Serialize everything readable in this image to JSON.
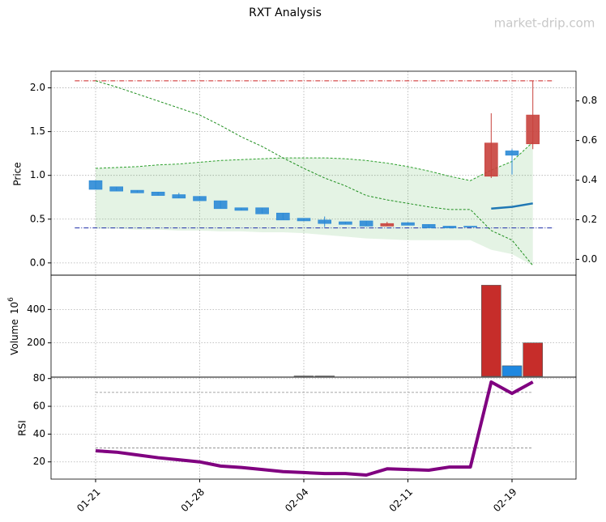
{
  "chart_data": [
    {
      "type": "candlestick",
      "title": "RXT Analysis",
      "watermark": "market-drip.com",
      "ylabel": "Price",
      "open": [
        0.94,
        0.87,
        0.83,
        0.81,
        0.78,
        0.76,
        0.71,
        0.63,
        0.63,
        0.57,
        0.51,
        0.49,
        0.47,
        0.48,
        0.42,
        0.46,
        0.44,
        0.42,
        0.42,
        0.99,
        1.28,
        1.36
      ],
      "high": [
        0.94,
        0.87,
        0.83,
        0.81,
        0.8,
        0.76,
        0.71,
        0.63,
        0.63,
        0.57,
        0.51,
        0.53,
        0.47,
        0.48,
        0.47,
        0.46,
        0.44,
        0.42,
        0.42,
        1.71,
        1.3,
        2.08
      ],
      "low": [
        0.84,
        0.82,
        0.8,
        0.77,
        0.74,
        0.71,
        0.62,
        0.6,
        0.56,
        0.49,
        0.48,
        0.41,
        0.44,
        0.42,
        0.42,
        0.43,
        0.4,
        0.4,
        0.41,
        0.97,
        1.01,
        1.3
      ],
      "close": [
        0.84,
        0.82,
        0.8,
        0.77,
        0.74,
        0.71,
        0.62,
        0.6,
        0.56,
        0.49,
        0.48,
        0.45,
        0.44,
        0.42,
        0.45,
        0.43,
        0.4,
        0.4,
        0.41,
        1.37,
        1.23,
        1.69
      ],
      "up_color": "#c8413c",
      "down_color": "#2b8ad6",
      "ylim": [
        -0.14,
        2.19
      ],
      "yticks": [
        {
          "value": 0,
          "label": "0.0"
        },
        {
          "value": 0.5,
          "label": "0.5"
        },
        {
          "value": 1,
          "label": "1.0"
        },
        {
          "value": 1.5,
          "label": "1.5"
        },
        {
          "value": 2,
          "label": "2.0"
        }
      ],
      "y2lim": [
        -0.08,
        0.95
      ],
      "y2ticks": [
        {
          "value": 0,
          "label": "0.0"
        },
        {
          "value": 0.2,
          "label": "0.2"
        },
        {
          "value": 0.4,
          "label": "0.4"
        },
        {
          "value": 0.6,
          "label": "0.6"
        },
        {
          "value": 0.8,
          "label": "0.8"
        }
      ],
      "band": {
        "color": "#2ca02c",
        "edge_style": "dashed",
        "upper": [
          1.08,
          1.09,
          1.1,
          1.12,
          1.13,
          1.15,
          1.17,
          1.18,
          1.19,
          1.2,
          1.2,
          1.2,
          1.19,
          1.17,
          1.14,
          1.1,
          1.05,
          0.99,
          0.94,
          1.06,
          1.16,
          1.38
        ],
        "lower": [
          0.39,
          0.39,
          0.38,
          0.38,
          0.37,
          0.37,
          0.36,
          0.36,
          0.35,
          0.35,
          0.34,
          0.32,
          0.3,
          0.28,
          0.27,
          0.26,
          0.26,
          0.26,
          0.26,
          0.15,
          0.1,
          -0.03
        ]
      },
      "overlays": [
        {
          "style": "dashed",
          "color": "#1f8f1f",
          "width": 1,
          "values": [
            2.08,
            2.01,
            1.93,
            1.85,
            1.77,
            1.69,
            1.57,
            1.44,
            1.33,
            1.2,
            1.08,
            0.97,
            0.88,
            0.77,
            0.72,
            0.68,
            0.64,
            0.61,
            0.61,
            0.37,
            0.26,
            -0.03
          ]
        },
        {
          "style": "solid",
          "color": "#1f77b4",
          "width": 2.5,
          "values": [
            null,
            null,
            null,
            null,
            null,
            null,
            null,
            null,
            null,
            null,
            null,
            null,
            null,
            null,
            null,
            null,
            null,
            null,
            null,
            0.62,
            0.64,
            0.68
          ]
        }
      ],
      "hlines": [
        {
          "value": 2.08,
          "color": "#cc2222"
        },
        {
          "value": 0.4,
          "color": "#1f2fa8"
        }
      ],
      "grid": true
    },
    {
      "type": "bar",
      "ylabel": "Volume",
      "offset_base": "10",
      "offset_exp": "6",
      "values": [
        0,
        0,
        0,
        0,
        0,
        0,
        0,
        0,
        0,
        0,
        2,
        2,
        0,
        0,
        0,
        0,
        0,
        0,
        0,
        545,
        63,
        200
      ],
      "colors": [
        "#1f88e0",
        "#1f88e0",
        "#1f88e0",
        "#1f88e0",
        "#1f88e0",
        "#1f88e0",
        "#1f88e0",
        "#1f88e0",
        "#1f88e0",
        "#1f88e0",
        "#1f88e0",
        "#1f88e0",
        "#1f88e0",
        "#1f88e0",
        "#c62d2a",
        "#1f88e0",
        "#1f88e0",
        "#1f88e0",
        "#1f88e0",
        "#c62d2a",
        "#1f88e0",
        "#c62d2a"
      ],
      "ylim": [
        -5,
        605
      ],
      "yticks": [
        200,
        400
      ],
      "grid": true
    },
    {
      "type": "line",
      "ylabel": "RSI",
      "color": "#800080",
      "categories": [
        "01-21",
        null,
        null,
        null,
        null,
        "01-28",
        null,
        null,
        null,
        null,
        "02-04",
        null,
        null,
        null,
        null,
        "02-11",
        null,
        null,
        null,
        null,
        "02-19",
        null
      ],
      "values": [
        28,
        27,
        25,
        23,
        21.5,
        20,
        17,
        16,
        14.5,
        13,
        12.3,
        11.6,
        11.6,
        10.5,
        15,
        14.5,
        14,
        16.3,
        16.3,
        77.5,
        69.3,
        77.5
      ],
      "hlines": [
        {
          "value": 70,
          "color": "#888888"
        },
        {
          "value": 30,
          "color": "#888888"
        }
      ],
      "ylim": [
        7.6,
        81
      ],
      "yticks": [
        20,
        40,
        60,
        80
      ],
      "grid": true
    }
  ]
}
